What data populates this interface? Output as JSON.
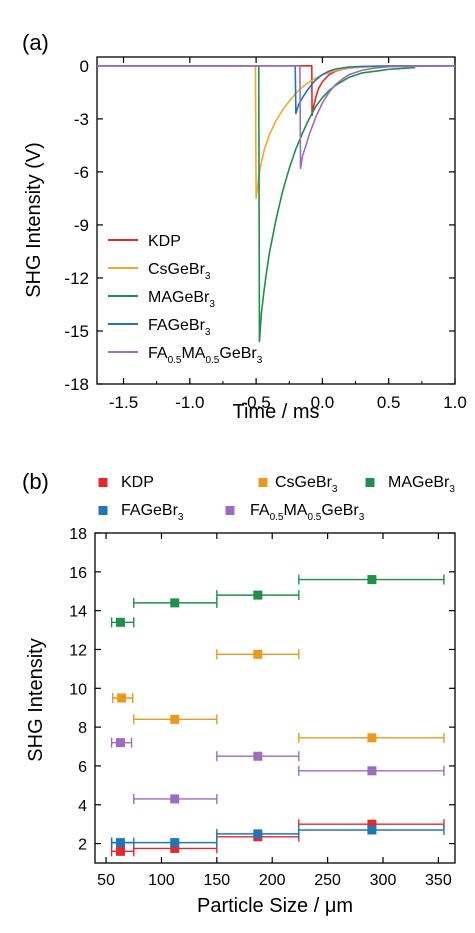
{
  "chart_data": [
    {
      "type": "line",
      "panel_label": "(a)",
      "xlabel": "Time / ms",
      "ylabel": "SHG Intensity (V)",
      "xlim": [
        -1.7,
        1.0
      ],
      "ylim": [
        -18,
        0.5
      ],
      "xticks": [
        -1.5,
        -1.0,
        -0.5,
        0.0,
        0.5,
        1.0
      ],
      "xtick_labels": [
        "-1.5",
        "-1.0",
        "-0.5",
        "0.0",
        "0.5",
        "1.0"
      ],
      "yticks": [
        0,
        -3,
        -6,
        -9,
        -12,
        -15,
        -18
      ],
      "ytick_labels": [
        "0",
        "-3",
        "-6",
        "-9",
        "-12",
        "-15",
        "-18"
      ],
      "legend_position": "bottom-left",
      "series": [
        {
          "name": "KDP",
          "label_parts": [
            [
              "KDP",
              ""
            ]
          ],
          "color": "#e8262b",
          "x": [
            -1.7,
            -0.08,
            -0.078,
            -0.07,
            -0.06,
            -0.05,
            -0.03,
            0.0,
            0.05,
            0.1,
            0.2,
            0.35,
            0.5,
            1.0
          ],
          "y": [
            0.0,
            0.0,
            -2.8,
            -2.4,
            -2.1,
            -1.8,
            -1.3,
            -0.9,
            -0.5,
            -0.3,
            -0.12,
            -0.04,
            -0.01,
            0.0
          ]
        },
        {
          "name": "CsGeBr3",
          "label_parts": [
            [
              "CsGeBr",
              ""
            ],
            [
              "3",
              "sub"
            ]
          ],
          "color": "#f0a830",
          "x": [
            -1.7,
            -0.505,
            -0.5,
            -0.49,
            -0.47,
            -0.44,
            -0.4,
            -0.35,
            -0.3,
            -0.25,
            -0.2,
            -0.15,
            -0.1,
            -0.05,
            0.0,
            0.1,
            0.2,
            0.3,
            0.5,
            1.0
          ],
          "y": [
            0.0,
            0.0,
            -7.5,
            -6.9,
            -5.8,
            -4.8,
            -3.9,
            -3.1,
            -2.5,
            -2.0,
            -1.55,
            -1.2,
            -0.92,
            -0.7,
            -0.5,
            -0.27,
            -0.14,
            -0.07,
            -0.02,
            0.0
          ]
        },
        {
          "name": "MAGeBr3",
          "label_parts": [
            [
              "MAGeBr",
              ""
            ],
            [
              "3",
              "sub"
            ]
          ],
          "color": "#1f8f4a",
          "x": [
            -1.7,
            -0.48,
            -0.475,
            -0.46,
            -0.44,
            -0.42,
            -0.4,
            -0.35,
            -0.3,
            -0.25,
            -0.2,
            -0.15,
            -0.1,
            -0.05,
            0.0,
            0.05,
            0.1,
            0.2,
            0.3,
            0.5,
            0.7
          ],
          "y": [
            0.0,
            0.0,
            -15.6,
            -14.0,
            -12.7,
            -11.6,
            -10.6,
            -8.7,
            -7.1,
            -5.8,
            -4.7,
            -3.8,
            -3.0,
            -2.3,
            -1.8,
            -1.4,
            -1.1,
            -0.65,
            -0.4,
            -0.2,
            -0.1
          ]
        },
        {
          "name": "FAGeBr3",
          "label_parts": [
            [
              "FAGeBr",
              ""
            ],
            [
              "3",
              "sub"
            ]
          ],
          "color": "#1f77b4",
          "x": [
            -1.7,
            -0.205,
            -0.2,
            -0.18,
            -0.15,
            -0.12,
            -0.08,
            -0.05,
            0.0,
            0.05,
            0.1,
            0.2,
            0.3,
            0.5,
            1.0
          ],
          "y": [
            0.0,
            0.0,
            -2.7,
            -2.2,
            -1.8,
            -1.45,
            -1.05,
            -0.8,
            -0.5,
            -0.3,
            -0.18,
            -0.07,
            -0.03,
            -0.01,
            0.0
          ]
        },
        {
          "name": "FA0.5MA0.5GeBr3",
          "label_parts": [
            [
              "FA",
              ""
            ],
            [
              "0.5",
              "sub"
            ],
            [
              "MA",
              ""
            ],
            [
              "0.5",
              "sub"
            ],
            [
              "GeBr",
              ""
            ],
            [
              "3",
              "sub"
            ]
          ],
          "color": "#9a6dbf",
          "x": [
            -1.7,
            -0.17,
            -0.165,
            -0.15,
            -0.12,
            -0.1,
            -0.05,
            0.0,
            0.05,
            0.1,
            0.15,
            0.2,
            0.3,
            0.4,
            0.5,
            1.0
          ],
          "y": [
            0.0,
            0.0,
            -5.8,
            -5.1,
            -4.4,
            -3.9,
            -2.9,
            -2.1,
            -1.5,
            -1.05,
            -0.75,
            -0.5,
            -0.25,
            -0.12,
            -0.05,
            0.0
          ]
        }
      ]
    },
    {
      "type": "scatter",
      "panel_label": "(b)",
      "xlabel_parts": [
        [
          "Particle Size / ",
          ""
        ],
        [
          "μ",
          ""
        ],
        [
          "m",
          ""
        ]
      ],
      "ylabel": "SHG Intensity",
      "xlim": [
        40,
        365
      ],
      "ylim": [
        1,
        18
      ],
      "xticks": [
        50,
        100,
        150,
        200,
        250,
        300,
        350
      ],
      "xtick_labels": [
        "50",
        "100",
        "150",
        "200",
        "250",
        "300",
        "350"
      ],
      "yticks": [
        2,
        4,
        6,
        8,
        10,
        12,
        14,
        16,
        18
      ],
      "ytick_labels": [
        "2",
        "4",
        "6",
        "8",
        "10",
        "12",
        "14",
        "16",
        "18"
      ],
      "legend_position": "top-outside",
      "series": [
        {
          "name": "KDP",
          "label_parts": [
            [
              "KDP",
              ""
            ]
          ],
          "color": "#e8262b",
          "points": [
            {
              "x": 63,
              "y": 1.6,
              "xerr": [
                55,
                75
              ]
            },
            {
              "x": 112,
              "y": 1.75,
              "xerr": [
                75,
                150
              ]
            },
            {
              "x": 187,
              "y": 2.35,
              "xerr": [
                150,
                224
              ]
            },
            {
              "x": 290,
              "y": 3.0,
              "xerr": [
                224,
                355
              ]
            }
          ]
        },
        {
          "name": "CsGeBr3",
          "label_parts": [
            [
              "CsGeBr",
              ""
            ],
            [
              "3",
              "sub"
            ]
          ],
          "color": "#e89a1e",
          "points": [
            {
              "x": 64,
              "y": 9.5,
              "xerr": [
                56,
                74
              ]
            },
            {
              "x": 112,
              "y": 8.4,
              "xerr": [
                75,
                150
              ]
            },
            {
              "x": 187,
              "y": 11.75,
              "xerr": [
                150,
                224
              ]
            },
            {
              "x": 290,
              "y": 7.45,
              "xerr": [
                224,
                355
              ]
            }
          ]
        },
        {
          "name": "MAGeBr3",
          "label_parts": [
            [
              "MAGeBr",
              ""
            ],
            [
              "3",
              "sub"
            ]
          ],
          "color": "#1f8f4a",
          "points": [
            {
              "x": 63,
              "y": 13.4,
              "xerr": [
                55,
                75
              ]
            },
            {
              "x": 112,
              "y": 14.4,
              "xerr": [
                75,
                150
              ]
            },
            {
              "x": 187,
              "y": 14.8,
              "xerr": [
                150,
                224
              ]
            },
            {
              "x": 290,
              "y": 15.6,
              "xerr": [
                224,
                355
              ]
            }
          ]
        },
        {
          "name": "FAGeBr3",
          "label_parts": [
            [
              "FAGeBr",
              ""
            ],
            [
              "3",
              "sub"
            ]
          ],
          "color": "#1f77b4",
          "points": [
            {
              "x": 63,
              "y": 2.05,
              "xerr": [
                55,
                75
              ]
            },
            {
              "x": 112,
              "y": 2.05,
              "xerr": [
                55,
                150
              ]
            },
            {
              "x": 187,
              "y": 2.5,
              "xerr": [
                150,
                224
              ]
            },
            {
              "x": 290,
              "y": 2.7,
              "xerr": [
                224,
                355
              ]
            }
          ]
        },
        {
          "name": "FA0.5MA0.5GeBr3",
          "label_parts": [
            [
              "FA",
              ""
            ],
            [
              "0.5",
              "sub"
            ],
            [
              "MA",
              ""
            ],
            [
              "0.5",
              "sub"
            ],
            [
              "GeBr",
              ""
            ],
            [
              "3",
              "sub"
            ]
          ],
          "color": "#9a6dbf",
          "points": [
            {
              "x": 63,
              "y": 7.2,
              "xerr": [
                55,
                73
              ]
            },
            {
              "x": 112,
              "y": 4.3,
              "xerr": [
                75,
                150
              ]
            },
            {
              "x": 187,
              "y": 6.5,
              "xerr": [
                150,
                224
              ]
            },
            {
              "x": 290,
              "y": 5.75,
              "xerr": [
                224,
                355
              ]
            }
          ]
        }
      ]
    }
  ]
}
